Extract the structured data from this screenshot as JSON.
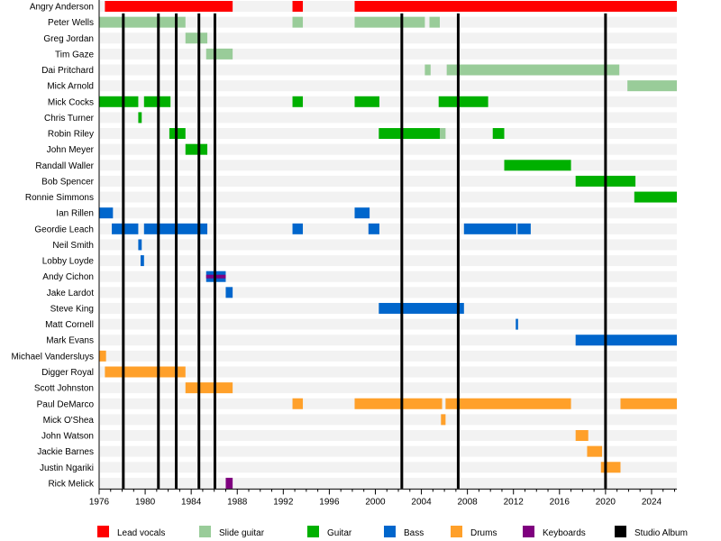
{
  "chart_data": {
    "type": "timeline",
    "title": "",
    "xlim": [
      1976,
      2026.2
    ],
    "x_ticks": [
      1976,
      1980,
      1984,
      1988,
      1992,
      1996,
      2000,
      2004,
      2008,
      2012,
      2016,
      2020,
      2024
    ],
    "colors": {
      "Lead vocals": "#ff0000",
      "Slide guitar": "#99cc99",
      "Guitar": "#00b000",
      "Bass": "#0066cc",
      "Drums": "#ffa02a",
      "Keyboards": "#7f007f",
      "Studio Album": "#000000"
    },
    "legend": [
      "Lead vocals",
      "Slide guitar",
      "Guitar",
      "Bass",
      "Drums",
      "Keyboards",
      "Studio Album"
    ],
    "legend_position": "bottom",
    "studio_albums": [
      1978.1,
      1981.15,
      1982.7,
      1984.67,
      1986.06,
      2002.3,
      2007.2,
      2020.0
    ],
    "members": [
      {
        "name": "Angry Anderson",
        "segments": [
          [
            1976.5,
            1987.6,
            "Lead vocals"
          ],
          [
            1992.8,
            1993.7,
            "Lead vocals"
          ],
          [
            1998.2,
            2026.2,
            "Lead vocals"
          ]
        ]
      },
      {
        "name": "Peter Wells",
        "segments": [
          [
            1976.0,
            1983.5,
            "Slide guitar"
          ],
          [
            1992.8,
            1993.7,
            "Slide guitar"
          ],
          [
            1998.2,
            2004.3,
            "Slide guitar"
          ],
          [
            2004.7,
            2005.6,
            "Slide guitar"
          ]
        ]
      },
      {
        "name": "Greg Jordan",
        "segments": [
          [
            1983.5,
            1985.4,
            "Slide guitar"
          ]
        ]
      },
      {
        "name": "Tim Gaze",
        "segments": [
          [
            1985.3,
            1987.6,
            "Slide guitar"
          ]
        ]
      },
      {
        "name": "Dai Pritchard",
        "segments": [
          [
            2004.3,
            2004.8,
            "Slide guitar"
          ],
          [
            2006.2,
            2021.2,
            "Slide guitar"
          ]
        ]
      },
      {
        "name": "Mick Arnold",
        "segments": [
          [
            2021.9,
            2026.2,
            "Slide guitar"
          ]
        ]
      },
      {
        "name": "Mick Cocks",
        "segments": [
          [
            1976.0,
            1979.4,
            "Guitar"
          ],
          [
            1979.9,
            1982.2,
            "Guitar"
          ],
          [
            1992.8,
            1993.7,
            "Guitar"
          ],
          [
            1998.2,
            2000.35,
            "Guitar"
          ],
          [
            2005.5,
            2009.8,
            "Guitar"
          ]
        ]
      },
      {
        "name": "Chris Turner",
        "segments": [
          [
            1979.4,
            1979.7,
            "Guitar"
          ]
        ]
      },
      {
        "name": "Robin Riley",
        "segments": [
          [
            1982.1,
            1983.5,
            "Guitar"
          ],
          [
            2000.3,
            2005.6,
            "Guitar"
          ],
          [
            2005.6,
            2006.1,
            "Slide guitar"
          ],
          [
            2010.2,
            2011.2,
            "Guitar"
          ]
        ]
      },
      {
        "name": "John Meyer",
        "segments": [
          [
            1983.5,
            1985.4,
            "Guitar"
          ]
        ]
      },
      {
        "name": "Randall Waller",
        "segments": [
          [
            2011.2,
            2017.0,
            "Guitar"
          ]
        ]
      },
      {
        "name": "Bob Spencer",
        "segments": [
          [
            2017.4,
            2022.6,
            "Guitar"
          ]
        ]
      },
      {
        "name": "Ronnie Simmons",
        "segments": [
          [
            2022.5,
            2026.2,
            "Guitar"
          ]
        ]
      },
      {
        "name": "Ian Rillen",
        "segments": [
          [
            1976.0,
            1977.2,
            "Bass"
          ],
          [
            1998.2,
            1999.5,
            "Bass"
          ]
        ]
      },
      {
        "name": "Geordie Leach",
        "segments": [
          [
            1977.1,
            1979.4,
            "Bass"
          ],
          [
            1979.9,
            1985.4,
            "Bass"
          ],
          [
            1992.8,
            1993.7,
            "Bass"
          ],
          [
            1999.4,
            2000.35,
            "Bass"
          ],
          [
            2007.7,
            2012.25,
            "Bass"
          ],
          [
            2012.35,
            2013.5,
            "Bass"
          ]
        ]
      },
      {
        "name": "Neil Smith",
        "segments": [
          [
            1979.4,
            1979.7,
            "Bass"
          ]
        ]
      },
      {
        "name": "Lobby Loyde",
        "segments": [
          [
            1979.6,
            1979.9,
            "Bass"
          ]
        ]
      },
      {
        "name": "Andy Cichon",
        "segments": [
          [
            1985.3,
            1987.0,
            "Bass",
            "Keyboards"
          ]
        ]
      },
      {
        "name": "Jake Lardot",
        "segments": [
          [
            1987.0,
            1987.6,
            "Bass"
          ]
        ]
      },
      {
        "name": "Steve King",
        "segments": [
          [
            2000.3,
            2007.7,
            "Bass"
          ]
        ]
      },
      {
        "name": "Matt Cornell",
        "segments": [
          [
            2012.2,
            2012.4,
            "Bass"
          ]
        ]
      },
      {
        "name": "Mark Evans",
        "segments": [
          [
            2017.4,
            2026.2,
            "Bass"
          ]
        ]
      },
      {
        "name": "Michael Vandersluys",
        "segments": [
          [
            1976.0,
            1976.6,
            "Drums"
          ]
        ]
      },
      {
        "name": "Digger Royal",
        "segments": [
          [
            1976.5,
            1983.5,
            "Drums"
          ]
        ]
      },
      {
        "name": "Scott Johnston",
        "segments": [
          [
            1983.5,
            1987.6,
            "Drums"
          ]
        ]
      },
      {
        "name": "Paul DeMarco",
        "segments": [
          [
            1992.8,
            1993.7,
            "Drums"
          ],
          [
            1998.2,
            2005.8,
            "Drums"
          ],
          [
            2006.1,
            2017.0,
            "Drums"
          ],
          [
            2021.3,
            2026.2,
            "Drums"
          ]
        ]
      },
      {
        "name": "Mick O'Shea",
        "segments": [
          [
            2005.7,
            2006.1,
            "Drums"
          ]
        ]
      },
      {
        "name": "John Watson",
        "segments": [
          [
            2017.4,
            2018.5,
            "Drums"
          ]
        ]
      },
      {
        "name": "Jackie Barnes",
        "segments": [
          [
            2018.4,
            2019.7,
            "Drums"
          ]
        ]
      },
      {
        "name": "Justin Ngariki",
        "segments": [
          [
            2019.6,
            2021.3,
            "Drums"
          ]
        ]
      },
      {
        "name": "Rick Melick",
        "segments": [
          [
            1987.0,
            1987.6,
            "Keyboards"
          ]
        ]
      }
    ]
  }
}
